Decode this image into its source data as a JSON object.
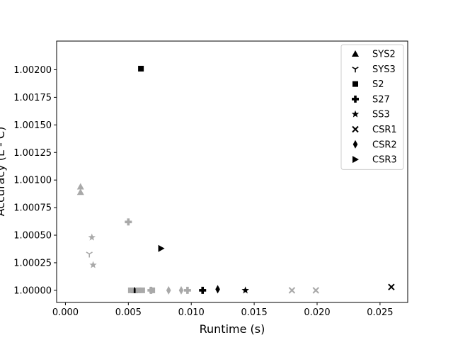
{
  "chart_data": {
    "type": "scatter",
    "xlabel": "Runtime (s)",
    "ylabel": "Accuracy (L - C)",
    "xlim": [
      -0.0007,
      0.0272
    ],
    "ylim": [
      0.99989,
      1.00226
    ],
    "x_ticks": [
      0.0,
      0.005,
      0.01,
      0.015,
      0.02,
      0.025
    ],
    "x_tick_labels": [
      "0.000",
      "0.005",
      "0.010",
      "0.015",
      "0.020",
      "0.025"
    ],
    "y_ticks": [
      1.0,
      1.00025,
      1.0005,
      1.00075,
      1.001,
      1.00125,
      1.0015,
      1.00175,
      1.002
    ],
    "y_tick_labels": [
      "1.00000",
      "1.00025",
      "1.00050",
      "1.00075",
      "1.00100",
      "1.00125",
      "1.00150",
      "1.00175",
      "1.00200"
    ],
    "legend_position": "top-right",
    "colors": {
      "primary": "#000000",
      "secondary": "#a9a9a9"
    },
    "series": [
      {
        "name": "SYS2",
        "marker": "triangle-up",
        "points": [
          {
            "x": 0.0055,
            "y": 1.0,
            "color": "#000000"
          },
          {
            "x": 0.0012,
            "y": 1.00094,
            "color": "#a9a9a9"
          },
          {
            "x": 0.0012,
            "y": 1.00089,
            "color": "#a9a9a9"
          }
        ]
      },
      {
        "name": "SYS3",
        "marker": "tri-down",
        "points": [
          {
            "x": 0.0019,
            "y": 1.00033,
            "color": "#a9a9a9"
          }
        ]
      },
      {
        "name": "S2",
        "marker": "square",
        "points": [
          {
            "x": 0.006,
            "y": 1.00201,
            "color": "#000000"
          },
          {
            "x": 0.0052,
            "y": 1.0,
            "color": "#a9a9a9"
          },
          {
            "x": 0.0058,
            "y": 1.0,
            "color": "#a9a9a9"
          },
          {
            "x": 0.0061,
            "y": 1.0,
            "color": "#a9a9a9"
          },
          {
            "x": 0.0069,
            "y": 1.0,
            "color": "#a9a9a9"
          }
        ]
      },
      {
        "name": "S27",
        "marker": "plus",
        "points": [
          {
            "x": 0.0109,
            "y": 1.0,
            "color": "#000000"
          },
          {
            "x": 0.005,
            "y": 1.00062,
            "color": "#a9a9a9"
          },
          {
            "x": 0.0068,
            "y": 1.0,
            "color": "#a9a9a9"
          },
          {
            "x": 0.0097,
            "y": 1.0,
            "color": "#a9a9a9"
          }
        ]
      },
      {
        "name": "SS3",
        "marker": "star",
        "points": [
          {
            "x": 0.0143,
            "y": 1.0,
            "color": "#000000"
          },
          {
            "x": 0.0021,
            "y": 1.00048,
            "color": "#a9a9a9"
          },
          {
            "x": 0.0022,
            "y": 1.00023,
            "color": "#a9a9a9"
          }
        ]
      },
      {
        "name": "CSR1",
        "marker": "x",
        "points": [
          {
            "x": 0.0259,
            "y": 1.00003,
            "color": "#000000"
          },
          {
            "x": 0.018,
            "y": 1.0,
            "color": "#a9a9a9"
          },
          {
            "x": 0.0199,
            "y": 1.0,
            "color": "#a9a9a9"
          }
        ]
      },
      {
        "name": "CSR2",
        "marker": "thin-diamond",
        "points": [
          {
            "x": 0.0121,
            "y": 1.00001,
            "color": "#000000"
          },
          {
            "x": 0.0082,
            "y": 1.0,
            "color": "#a9a9a9"
          },
          {
            "x": 0.0092,
            "y": 1.0,
            "color": "#a9a9a9"
          }
        ]
      },
      {
        "name": "CSR3",
        "marker": "triangle-right",
        "points": [
          {
            "x": 0.0076,
            "y": 1.00038,
            "color": "#000000"
          }
        ]
      }
    ]
  }
}
